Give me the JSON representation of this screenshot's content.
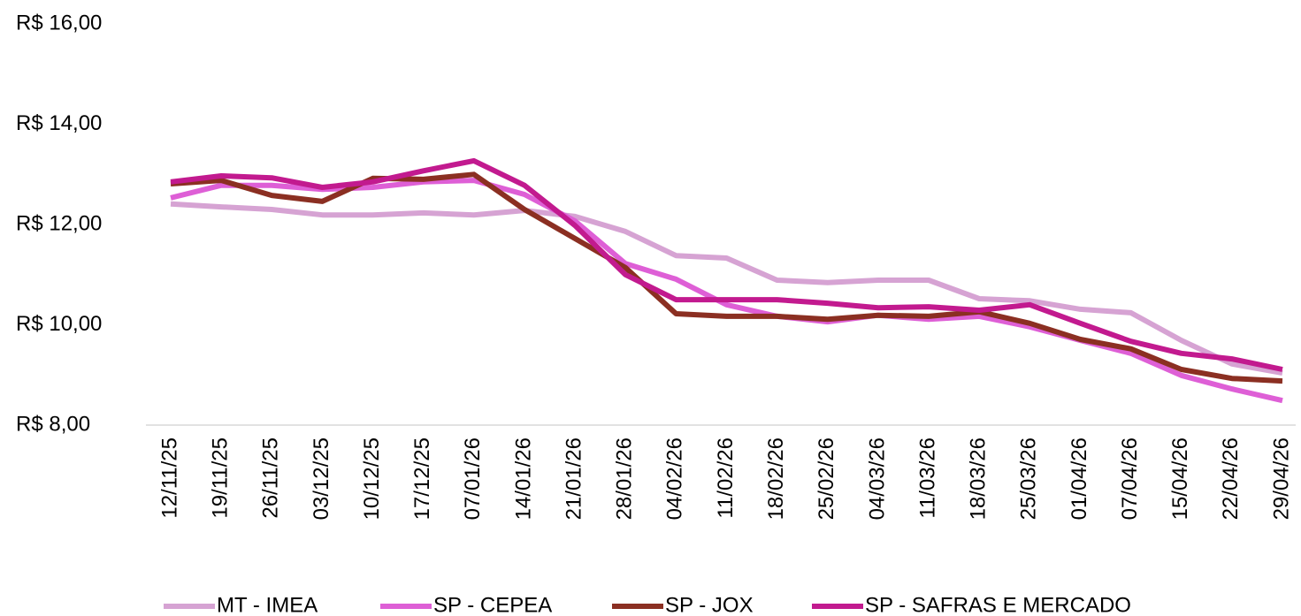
{
  "chart_data": {
    "type": "line",
    "categories": [
      "12/11/25",
      "19/11/25",
      "26/11/25",
      "03/12/25",
      "10/12/25",
      "17/12/25",
      "07/01/26",
      "14/01/26",
      "21/01/26",
      "28/01/26",
      "04/02/26",
      "11/02/26",
      "18/02/26",
      "25/02/26",
      "04/03/26",
      "11/03/26",
      "18/03/26",
      "25/03/26",
      "01/04/26",
      "07/04/26",
      "15/04/26",
      "22/04/26",
      "29/04/26"
    ],
    "series": [
      {
        "name": "MT - IMEA",
        "color": "#d6a3d3",
        "values": [
          12.41,
          12.35,
          12.3,
          12.19,
          12.19,
          12.23,
          12.19,
          12.28,
          12.16,
          11.86,
          11.38,
          11.33,
          10.89,
          10.84,
          10.89,
          10.89,
          10.52,
          10.48,
          10.31,
          10.24,
          9.69,
          9.22,
          9.04
        ]
      },
      {
        "name": "SP - CEPEA",
        "color": "#de5fd6",
        "values": [
          12.53,
          12.78,
          12.78,
          12.7,
          12.74,
          12.85,
          12.88,
          12.6,
          12.07,
          11.22,
          10.91,
          10.4,
          10.17,
          10.06,
          10.19,
          10.11,
          10.17,
          9.96,
          9.69,
          9.43,
          8.99,
          8.72,
          8.49
        ]
      },
      {
        "name": "SP - JOX",
        "color": "#8b2f22",
        "values": [
          12.81,
          12.88,
          12.58,
          12.46,
          12.92,
          12.9,
          13.0,
          12.3,
          11.72,
          11.14,
          10.22,
          10.17,
          10.17,
          10.11,
          10.19,
          10.17,
          10.26,
          10.03,
          9.71,
          9.52,
          9.11,
          8.93,
          8.88
        ]
      },
      {
        "name": "SP - SAFRAS E MERCADO",
        "color": "#c21a8f",
        "values": [
          12.85,
          12.97,
          12.93,
          12.74,
          12.85,
          13.07,
          13.27,
          12.78,
          11.98,
          11.0,
          10.5,
          10.5,
          10.5,
          10.43,
          10.34,
          10.36,
          10.29,
          10.4,
          10.03,
          9.67,
          9.43,
          9.32,
          9.11
        ]
      }
    ],
    "ylim": [
      8,
      16
    ],
    "yticks": [
      {
        "value": 8,
        "label": "R$ 8,00"
      },
      {
        "value": 10,
        "label": "R$ 10,00"
      },
      {
        "value": 12,
        "label": "R$ 12,00"
      },
      {
        "value": 14,
        "label": "R$ 14,00"
      },
      {
        "value": 16,
        "label": "R$ 16,00"
      }
    ]
  }
}
